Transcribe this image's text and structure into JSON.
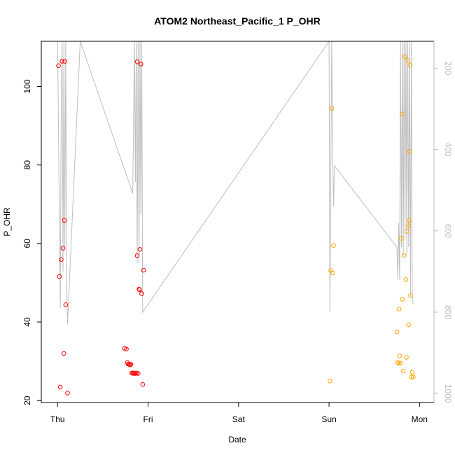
{
  "chart_data": {
    "type": "scatter",
    "title": "ATOM2 Northeast_Pacific_1 P_OHR",
    "xlabel": "Date",
    "ylabel": "P_OHR",
    "x_ticks": [
      "Thu",
      "Fri",
      "Sat",
      "Sun",
      "Mon"
    ],
    "x_unit": "days",
    "xlim": [
      -0.18,
      4.16
    ],
    "ylim": [
      19.5,
      111.5
    ],
    "y_ticks": [
      20,
      40,
      60,
      80,
      100
    ],
    "y2_ticks": [
      200,
      400,
      600,
      800,
      1000
    ],
    "y2lim": [
      1022,
      134
    ],
    "series": [
      {
        "color": "#ff0000",
        "points": [
          [
            0.01,
            105.3
          ],
          [
            0.02,
            51.6
          ],
          [
            0.03,
            23.4
          ],
          [
            0.04,
            55.9
          ],
          [
            0.05,
            106.4
          ],
          [
            0.06,
            58.8
          ],
          [
            0.07,
            32.0
          ],
          [
            0.075,
            65.9
          ],
          [
            0.08,
            106.4
          ],
          [
            0.09,
            44.4
          ],
          [
            0.11,
            21.9
          ],
          [
            0.74,
            33.3
          ],
          [
            0.76,
            33.1
          ],
          [
            0.77,
            29.7
          ],
          [
            0.78,
            29.3
          ],
          [
            0.79,
            29.2
          ],
          [
            0.8,
            29.1
          ],
          [
            0.81,
            29.2
          ],
          [
            0.82,
            27.0
          ],
          [
            0.83,
            27.0
          ],
          [
            0.84,
            26.9
          ],
          [
            0.85,
            27.0
          ],
          [
            0.86,
            26.9
          ],
          [
            0.87,
            27.0
          ],
          [
            0.89,
            26.9
          ],
          [
            0.88,
            56.9
          ],
          [
            0.9,
            48.4
          ],
          [
            0.905,
            48.2
          ],
          [
            0.88,
            106.3
          ],
          [
            0.91,
            58.5
          ],
          [
            0.92,
            105.7
          ],
          [
            0.93,
            47.2
          ],
          [
            0.94,
            24.1
          ],
          [
            0.95,
            53.2
          ]
        ]
      },
      {
        "color": "#ffa500",
        "points": [
          [
            3.01,
            25.0
          ],
          [
            3.02,
            53.1
          ],
          [
            3.03,
            94.4
          ],
          [
            3.04,
            52.5
          ],
          [
            3.05,
            59.5
          ],
          [
            3.75,
            37.5
          ],
          [
            3.76,
            29.7
          ],
          [
            3.77,
            29.5
          ],
          [
            3.775,
            43.3
          ],
          [
            3.78,
            31.4
          ],
          [
            3.79,
            29.5
          ],
          [
            3.8,
            61.3
          ],
          [
            3.805,
            93.0
          ],
          [
            3.81,
            45.8
          ],
          [
            3.82,
            27.5
          ],
          [
            3.83,
            57.0
          ],
          [
            3.84,
            107.6
          ],
          [
            3.85,
            50.8
          ],
          [
            3.855,
            31.0
          ],
          [
            3.86,
            63.1
          ],
          [
            3.87,
            106.6
          ],
          [
            3.875,
            64.5
          ],
          [
            3.88,
            39.3
          ],
          [
            3.885,
            65.9
          ],
          [
            3.89,
            83.4
          ],
          [
            3.895,
            105.4
          ],
          [
            3.9,
            46.7
          ],
          [
            3.91,
            26.0
          ],
          [
            3.92,
            27.2
          ],
          [
            3.93,
            26.0
          ]
        ]
      }
    ],
    "depth_profile": {
      "color": "#bebebe",
      "points": [
        [
          0.0,
          134
        ],
        [
          0.02,
          580
        ],
        [
          0.03,
          790
        ],
        [
          0.04,
          320
        ],
        [
          0.05,
          134
        ],
        [
          0.06,
          700
        ],
        [
          0.07,
          134
        ],
        [
          0.08,
          640
        ],
        [
          0.09,
          134
        ],
        [
          0.1,
          720
        ],
        [
          0.11,
          830
        ],
        [
          0.25,
          134
        ],
        [
          0.83,
          508
        ],
        [
          0.85,
          134
        ],
        [
          0.86,
          480
        ],
        [
          0.87,
          134
        ],
        [
          0.88,
          680
        ],
        [
          0.89,
          134
        ],
        [
          0.9,
          680
        ],
        [
          0.91,
          134
        ],
        [
          0.92,
          560
        ],
        [
          0.93,
          134
        ],
        [
          0.94,
          800
        ],
        [
          3.0,
          134
        ],
        [
          3.01,
          800
        ],
        [
          3.03,
          134
        ],
        [
          3.04,
          400
        ],
        [
          3.05,
          540
        ],
        [
          3.06,
          440
        ],
        [
          3.75,
          640
        ],
        [
          3.76,
          720
        ],
        [
          3.77,
          580
        ],
        [
          3.78,
          720
        ],
        [
          3.79,
          134
        ],
        [
          3.8,
          640
        ],
        [
          3.81,
          134
        ],
        [
          3.82,
          660
        ],
        [
          3.83,
          134
        ],
        [
          3.84,
          620
        ],
        [
          3.85,
          134
        ],
        [
          3.86,
          660
        ],
        [
          3.87,
          134
        ],
        [
          3.88,
          640
        ],
        [
          3.89,
          134
        ],
        [
          3.9,
          760
        ],
        [
          3.91,
          134
        ],
        [
          3.92,
          760
        ],
        [
          3.93,
          780
        ]
      ]
    }
  }
}
